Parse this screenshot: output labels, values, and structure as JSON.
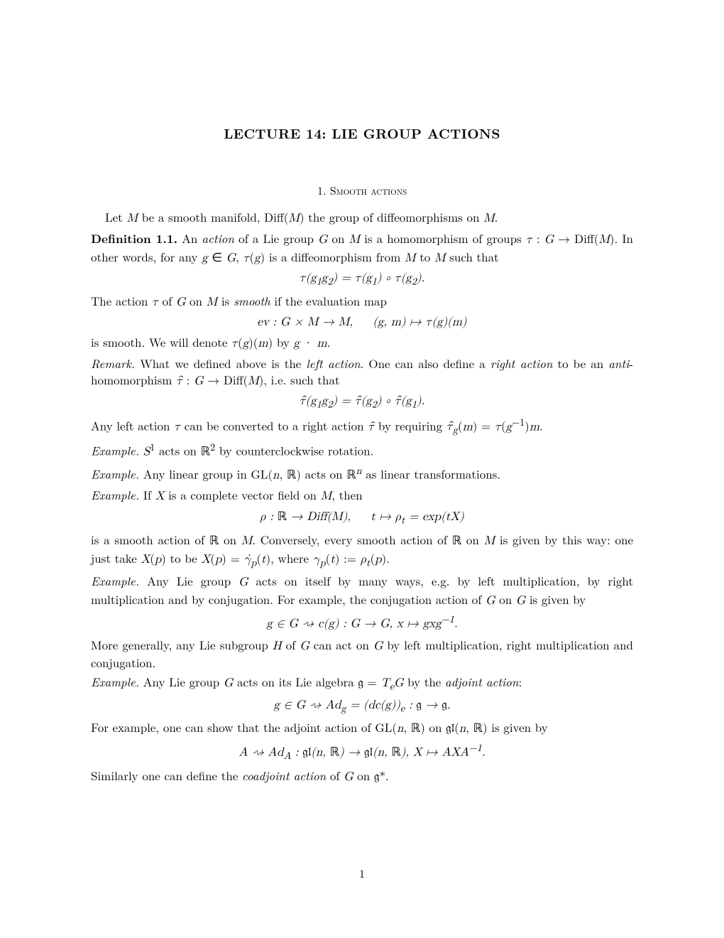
{
  "title": "LECTURE 14: LIE GROUP ACTIONS",
  "section_number": "1.",
  "section_title": "Smooth actions",
  "intro": "Let M be a smooth manifold, Diff(M) the group of diffeomorphisms on M.",
  "def_label": "Definition 1.1.",
  "def_text1": " An ",
  "def_action": "action",
  "def_text2": " of a Lie group G on M is a homomorphism of groups τ : G → Diff(M). In other words, for any g ∈ G, τ(g) is a diffeomorphism from M to M such that",
  "eq1": "τ(g₁g₂) = τ(g₁) ∘ τ(g₂).",
  "def_text3": "The action τ of G on M is ",
  "smooth": "smooth",
  "def_text4": " if the evaluation map",
  "eq2": "ev : G × M → M,    (g, m) ↦ τ(g)(m)",
  "def_text5": "is smooth. We will denote τ(g)(m) by g · m.",
  "remark_label": "Remark.",
  "remark_text1": " What we defined above is the ",
  "left_action": "left action",
  "remark_text2": ". One can also define a ",
  "right_action": "right action",
  "remark_text3": " to be an ",
  "anti": "anti",
  "remark_text4": "-homomorphism τ̂ : G → Diff(M), i.e. such that",
  "eq3": "τ̂(g₁g₂) = τ̂(g₂) ∘ τ̂(g₁).",
  "remark_text5": "Any left action τ can be converted to a right action τ̂ by requiring τ̂_g(m) = τ(g⁻¹)m.",
  "ex1_label": "Example.",
  "ex1_text": " S¹ acts on ℝ² by counterclockwise rotation.",
  "ex2_label": "Example.",
  "ex2_text": " Any linear group in GL(n, ℝ) acts on ℝⁿ as linear transformations.",
  "ex3_label": "Example.",
  "ex3_text": " If X is a complete vector field on M, then",
  "eq4": "ρ : ℝ → Diff(M),    t ↦ ρ_t = exp(tX)",
  "ex3_text2": "is a smooth action of ℝ on M. Conversely, every smooth action of ℝ on M is given by this way: one just take X(p) to be X(p) = γ̇_p(t), where γ_p(t) := ρ_t(p).",
  "ex4_label": "Example.",
  "ex4_text": " Any Lie group G acts on itself by many ways, e.g. by left multiplication, by right multiplication and by conjugation. For example, the conjugation action of G on G is given by",
  "eq5": "g ∈ G ⇝ c(g) : G → G, x ↦ gxg⁻¹.",
  "ex4_text2": "More generally, any Lie subgroup H of G can act on G by left multiplication, right multiplication and conjugation.",
  "ex5_label": "Example.",
  "ex5_text": " Any Lie group G acts on its Lie algebra 𝔤 = T_eG by the ",
  "adjoint": "adjoint action",
  "ex5_text2": ":",
  "eq6": "g ∈ G ⇝ Ad_g = (dc(g))_e : 𝔤 → 𝔤.",
  "ex5_text3": "For example, one can show that the adjoint action of GL(n, ℝ) on 𝔤𝔩(n, ℝ) is given by",
  "eq7": "A ⇝ Ad_A : 𝔤𝔩(n, ℝ) → 𝔤𝔩(n, ℝ), X ↦ AXA⁻¹.",
  "ex5_text4": "Similarly one can define the ",
  "coadjoint": "coadjoint action",
  "ex5_text5": " of G on 𝔤*.",
  "page_number": "1"
}
